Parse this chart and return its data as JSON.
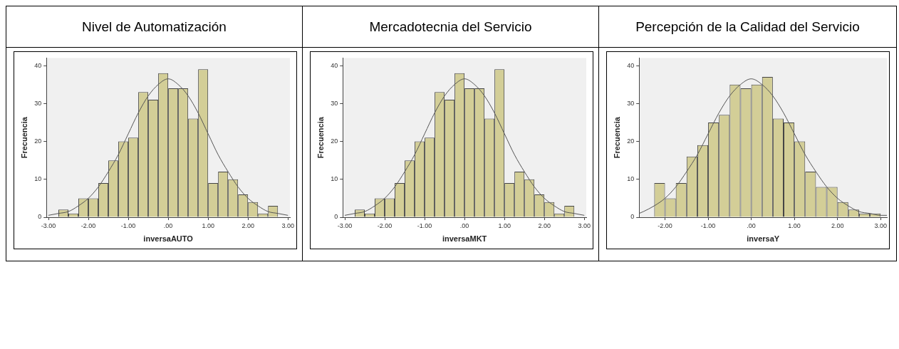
{
  "chart_data": [
    {
      "type": "histogram",
      "title": "Nivel de Automatización",
      "xlabel": "inversaAUTO",
      "ylabel": "Frecuencia",
      "bins": [
        -2.75,
        -2.5,
        -2.25,
        -2,
        -1.75,
        -1.5,
        -1.25,
        -1,
        -0.75,
        -0.5,
        -0.25,
        0,
        0.25,
        0.5,
        0.75,
        1,
        1.25,
        1.5,
        1.75,
        2,
        2.25,
        2.5,
        2.75
      ],
      "series": [
        {
          "type": "histogram",
          "color": "#d3ce97",
          "values": [
            2,
            1,
            5,
            5,
            9,
            15,
            20,
            21,
            33,
            31,
            38,
            34,
            34,
            26,
            39,
            9,
            12,
            10,
            6,
            4,
            1,
            3
          ]
        },
        {
          "type": "line",
          "color": "#555555",
          "x": [
            -3,
            -2.75,
            -2.5,
            -2.25,
            -2,
            -1.75,
            -1.5,
            -1.25,
            -1,
            -0.75,
            -0.5,
            -0.25,
            0,
            0.25,
            0.5,
            0.75,
            1,
            1.25,
            1.5,
            1.75,
            2,
            2.25,
            2.5,
            2.75,
            3
          ],
          "values": [
            0.5,
            1,
            1.5,
            3,
            5,
            8,
            12,
            16.5,
            22,
            27.5,
            32,
            35,
            36.5,
            35,
            32,
            27.5,
            22,
            16.5,
            12,
            8,
            5,
            3,
            1.5,
            1,
            0.5
          ]
        }
      ],
      "xlim": [
        -3.05,
        3.05
      ],
      "xticks": [
        {
          "value": -3,
          "label": "-3.00"
        },
        {
          "value": -2,
          "label": "-2.00"
        },
        {
          "value": -1,
          "label": "-1.00"
        },
        {
          "value": 0,
          "label": ".00"
        },
        {
          "value": 1,
          "label": "1.00"
        },
        {
          "value": 2,
          "label": "2.00"
        },
        {
          "value": 3,
          "label": "3.00"
        }
      ],
      "ylim": [
        0,
        42
      ],
      "yticks": [
        0,
        10,
        20,
        30,
        40
      ],
      "grid": false,
      "legend": false
    },
    {
      "type": "histogram",
      "title": "Mercadotecnia del Servicio",
      "xlabel": "inversaMKT",
      "ylabel": "Frecuencia",
      "bins": [
        -2.75,
        -2.5,
        -2.25,
        -2,
        -1.75,
        -1.5,
        -1.25,
        -1,
        -0.75,
        -0.5,
        -0.25,
        0,
        0.25,
        0.5,
        0.75,
        1,
        1.25,
        1.5,
        1.75,
        2,
        2.25,
        2.5,
        2.75
      ],
      "series": [
        {
          "type": "histogram",
          "color": "#d3ce97",
          "values": [
            2,
            1,
            5,
            5,
            9,
            15,
            20,
            21,
            33,
            31,
            38,
            34,
            34,
            26,
            39,
            9,
            12,
            10,
            6,
            4,
            1,
            3
          ]
        },
        {
          "type": "line",
          "color": "#555555",
          "x": [
            -3,
            -2.75,
            -2.5,
            -2.25,
            -2,
            -1.75,
            -1.5,
            -1.25,
            -1,
            -0.75,
            -0.5,
            -0.25,
            0,
            0.25,
            0.5,
            0.75,
            1,
            1.25,
            1.5,
            1.75,
            2,
            2.25,
            2.5,
            2.75,
            3
          ],
          "values": [
            0.5,
            1,
            1.5,
            3,
            5,
            8,
            12,
            16.5,
            22,
            27.5,
            32,
            35,
            36.5,
            35,
            32,
            27.5,
            22,
            16.5,
            12,
            8,
            5,
            3,
            1.5,
            1,
            0.5
          ]
        }
      ],
      "xlim": [
        -3.05,
        3.05
      ],
      "xticks": [
        {
          "value": -3,
          "label": "-3.00"
        },
        {
          "value": -2,
          "label": "-2.00"
        },
        {
          "value": -1,
          "label": "-1.00"
        },
        {
          "value": 0,
          "label": ".00"
        },
        {
          "value": 1,
          "label": "1.00"
        },
        {
          "value": 2,
          "label": "2.00"
        },
        {
          "value": 3,
          "label": "3.00"
        }
      ],
      "ylim": [
        0,
        42
      ],
      "yticks": [
        0,
        10,
        20,
        30,
        40
      ],
      "grid": false,
      "legend": false
    },
    {
      "type": "histogram",
      "title": "Percepción de la Calidad del Servicio",
      "xlabel": "inversaY",
      "ylabel": "Frecuencia",
      "bins": [
        -2.25,
        -2,
        -1.75,
        -1.5,
        -1.25,
        -1,
        -0.75,
        -0.5,
        -0.25,
        0,
        0.25,
        0.5,
        0.75,
        1,
        1.25,
        1.5,
        1.75,
        2,
        2.25,
        2.5,
        2.75,
        3
      ],
      "series": [
        {
          "type": "histogram",
          "color": "#d3ce97",
          "values": [
            9,
            5,
            9,
            16,
            19,
            25,
            27,
            35,
            34,
            35,
            37,
            26,
            25,
            20,
            12,
            8,
            8,
            4,
            2,
            1,
            1
          ]
        },
        {
          "type": "line",
          "color": "#555555",
          "x": [
            -2.6,
            -2.5,
            -2.25,
            -2,
            -1.75,
            -1.5,
            -1.25,
            -1,
            -0.75,
            -0.5,
            -0.25,
            0,
            0.25,
            0.5,
            0.75,
            1,
            1.25,
            1.5,
            1.75,
            2,
            2.25,
            2.5,
            2.75,
            3,
            3.15
          ],
          "values": [
            1,
            1.5,
            3,
            5,
            8,
            12,
            16.5,
            22,
            27.5,
            32,
            35,
            36.5,
            35,
            32,
            27.5,
            22,
            16.5,
            12,
            8,
            5,
            3,
            1.5,
            1,
            0.5,
            0.5
          ]
        }
      ],
      "xlim": [
        -2.6,
        3.15
      ],
      "xticks": [
        {
          "value": -2,
          "label": "-2.00"
        },
        {
          "value": -1,
          "label": "-1.00"
        },
        {
          "value": 0,
          "label": ".00"
        },
        {
          "value": 1,
          "label": "1.00"
        },
        {
          "value": 2,
          "label": "2.00"
        },
        {
          "value": 3,
          "label": "3.00"
        }
      ],
      "ylim": [
        0,
        42
      ],
      "yticks": [
        0,
        10,
        20,
        30,
        40
      ],
      "grid": false,
      "legend": false
    }
  ]
}
